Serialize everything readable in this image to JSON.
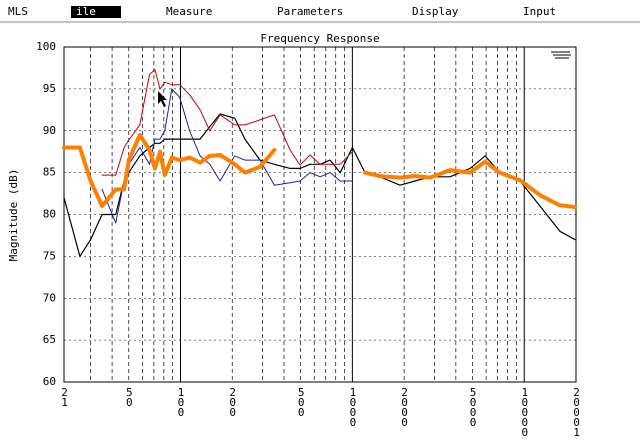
{
  "menu": [
    "MLS",
    "ile",
    "Measure",
    "Parameters",
    "Display",
    "Input"
  ],
  "chart_data": {
    "type": "line",
    "title": "Frequency Response",
    "ylabel": "Magnitude (dB)",
    "xscale": "log",
    "xlim": [
      21,
      20001
    ],
    "ylim": [
      60,
      100
    ],
    "xticks": [
      21,
      50,
      100,
      200,
      500,
      1000,
      2000,
      5000,
      10000,
      20001
    ],
    "xminorticks": [
      30,
      40,
      60,
      70,
      80,
      90,
      300,
      400,
      600,
      700,
      800,
      900,
      3000,
      4000,
      6000,
      7000,
      8000,
      9000
    ],
    "yticks": [
      60,
      65,
      70,
      75,
      80,
      85,
      90,
      95,
      100
    ],
    "grid": true,
    "x": [
      21,
      26,
      30,
      35,
      42,
      47,
      50,
      58,
      66,
      71,
      76,
      81,
      89,
      99,
      113,
      130,
      148,
      170,
      207,
      237,
      290,
      352,
      434,
      496,
      567,
      649,
      742,
      849,
      1000,
      1185,
      1445,
      1893,
      2314,
      2830,
      3700,
      4840,
      5920,
      7200,
      9440,
      12340,
      16130,
      19750
    ],
    "series": [
      {
        "color": "#000000",
        "width": 1.2,
        "values": [
          82,
          75,
          77,
          80,
          80,
          84,
          85,
          87,
          88,
          88.5,
          88.5,
          89,
          89,
          89,
          89,
          89,
          90.5,
          92,
          91.5,
          89,
          86.5,
          86,
          85.5,
          85.5,
          86,
          86,
          86.5,
          85,
          88,
          85,
          84.5,
          83.5,
          84,
          84.5,
          84.5,
          85.5,
          87,
          85,
          84,
          81,
          78,
          77
        ]
      },
      {
        "color": "#cc0000",
        "width": 1,
        "values": [
          null,
          null,
          null,
          84.7,
          84.7,
          88,
          88.9,
          90.7,
          96.7,
          97.3,
          95,
          95.8,
          95.5,
          95.5,
          94.3,
          92.5,
          90,
          91.9,
          90.7,
          90.7,
          91.3,
          91.9,
          87.7,
          85.9,
          87.1,
          86,
          86,
          86,
          87.5,
          null,
          null,
          null,
          null,
          null,
          null,
          null,
          null,
          null,
          null,
          null,
          null,
          null
        ]
      },
      {
        "color": "#2020a0",
        "width": 1,
        "values": [
          null,
          null,
          null,
          83,
          79,
          84,
          86,
          88,
          86,
          89,
          89,
          90,
          95,
          94,
          90,
          87,
          86,
          84,
          87,
          86.5,
          86.5,
          83.5,
          83.8,
          84,
          85,
          84.5,
          85,
          84,
          84,
          null,
          null,
          null,
          null,
          null,
          null,
          null,
          null,
          null,
          null,
          null,
          null,
          null
        ]
      },
      {
        "color": "#ff8000",
        "width": 4,
        "values": [
          88,
          88,
          84,
          81,
          83,
          83,
          86.5,
          89.5,
          87.7,
          85.5,
          87.5,
          84.7,
          86.8,
          86.5,
          86.8,
          86.2,
          87,
          87.1,
          86,
          85,
          85.7,
          87.7,
          null,
          null,
          null,
          null,
          null,
          null,
          null,
          85,
          84.6,
          84.4,
          84.6,
          84.4,
          85.3,
          85,
          86.3,
          85,
          84.1,
          82.3,
          81.1,
          80.9
        ]
      }
    ]
  }
}
